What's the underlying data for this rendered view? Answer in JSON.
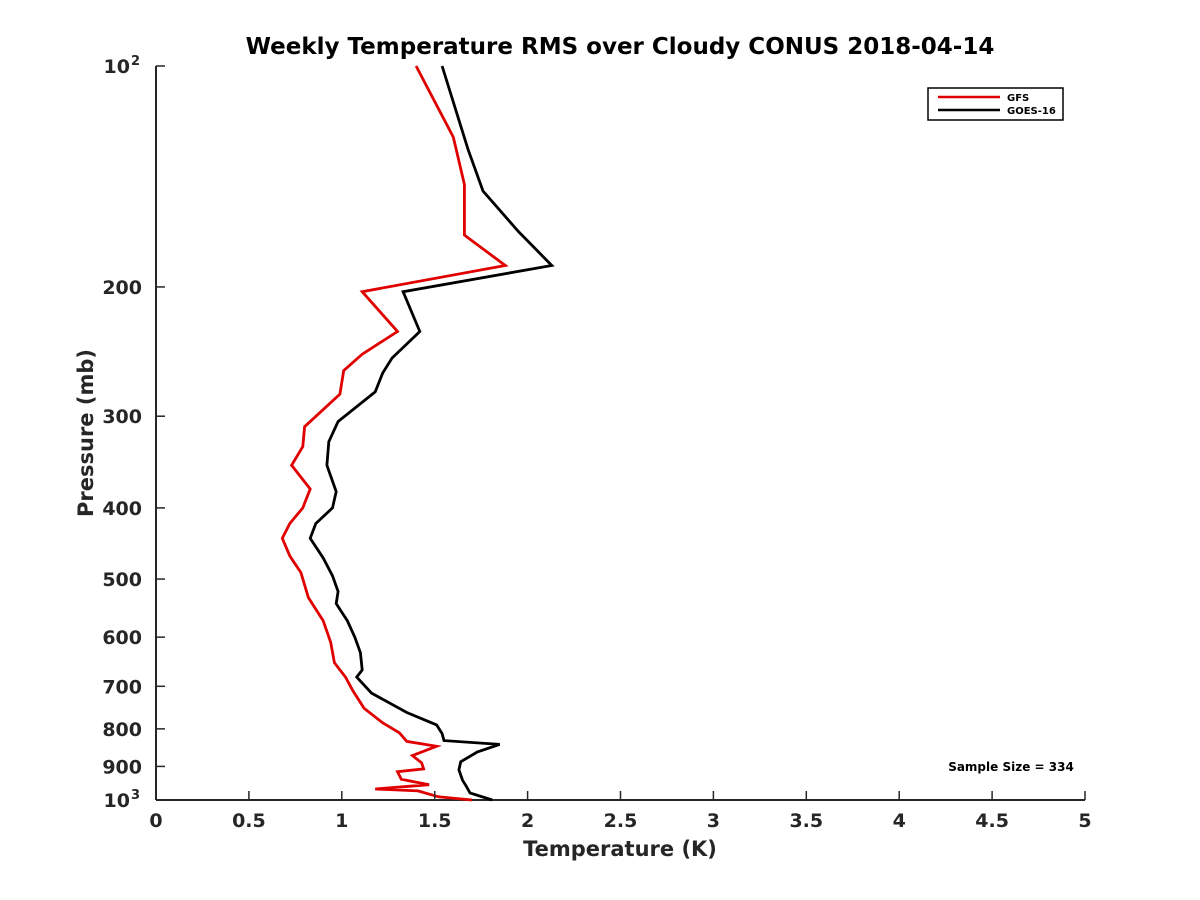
{
  "chart_data": {
    "type": "line",
    "title": "Weekly Temperature RMS over Cloudy CONUS 2018-04-14",
    "xlabel": "Temperature (K)",
    "ylabel": "Pressure (mb)",
    "xlim": [
      0,
      5
    ],
    "ylim": [
      100,
      1000
    ],
    "yscale": "log",
    "yreversed": true,
    "x_ticks": [
      {
        "value": 0,
        "label": "0"
      },
      {
        "value": 0.5,
        "label": "0.5"
      },
      {
        "value": 1,
        "label": "1"
      },
      {
        "value": 1.5,
        "label": "1.5"
      },
      {
        "value": 2,
        "label": "2"
      },
      {
        "value": 2.5,
        "label": "2.5"
      },
      {
        "value": 3,
        "label": "3"
      },
      {
        "value": 3.5,
        "label": "3.5"
      },
      {
        "value": 4,
        "label": "4"
      },
      {
        "value": 4.5,
        "label": "4.5"
      },
      {
        "value": 5,
        "label": "5"
      }
    ],
    "y_ticks": [
      {
        "value": 100,
        "base": "10",
        "exp": "2"
      },
      {
        "value": 200,
        "label": "200"
      },
      {
        "value": 300,
        "label": "300"
      },
      {
        "value": 400,
        "label": "400"
      },
      {
        "value": 500,
        "label": "500"
      },
      {
        "value": 600,
        "label": "600"
      },
      {
        "value": 700,
        "label": "700"
      },
      {
        "value": 800,
        "label": "800"
      },
      {
        "value": 900,
        "label": "900"
      },
      {
        "value": 1000,
        "base": "10",
        "exp": "3"
      }
    ],
    "grid": false,
    "legend_position": "top-right",
    "annotation": "Sample Size = 334",
    "series": [
      {
        "name": "GFS",
        "color": "#e00000",
        "points": [
          [
            1.4,
            100
          ],
          [
            1.6,
            125
          ],
          [
            1.66,
            145
          ],
          [
            1.66,
            170
          ],
          [
            1.88,
            187
          ],
          [
            1.11,
            203
          ],
          [
            1.3,
            230
          ],
          [
            1.11,
            247
          ],
          [
            1.01,
            260
          ],
          [
            0.99,
            280
          ],
          [
            0.8,
            310
          ],
          [
            0.79,
            330
          ],
          [
            0.73,
            350
          ],
          [
            0.83,
            377
          ],
          [
            0.79,
            400
          ],
          [
            0.72,
            420
          ],
          [
            0.68,
            440
          ],
          [
            0.72,
            465
          ],
          [
            0.78,
            490
          ],
          [
            0.82,
            530
          ],
          [
            0.9,
            570
          ],
          [
            0.94,
            610
          ],
          [
            0.96,
            650
          ],
          [
            1.02,
            680
          ],
          [
            1.06,
            710
          ],
          [
            1.12,
            750
          ],
          [
            1.22,
            785
          ],
          [
            1.31,
            810
          ],
          [
            1.35,
            832
          ],
          [
            1.51,
            845
          ],
          [
            1.38,
            870
          ],
          [
            1.43,
            890
          ],
          [
            1.44,
            907
          ],
          [
            1.3,
            915
          ],
          [
            1.32,
            937
          ],
          [
            1.47,
            953
          ],
          [
            1.18,
            966
          ],
          [
            1.41,
            972
          ],
          [
            1.52,
            990
          ],
          [
            1.7,
            1000
          ]
        ]
      },
      {
        "name": "GOES-16",
        "color": "#000000",
        "points": [
          [
            1.54,
            100
          ],
          [
            1.68,
            130
          ],
          [
            1.76,
            148
          ],
          [
            1.95,
            168
          ],
          [
            2.13,
            187
          ],
          [
            1.33,
            203
          ],
          [
            1.42,
            230
          ],
          [
            1.27,
            250
          ],
          [
            1.22,
            262
          ],
          [
            1.18,
            278
          ],
          [
            0.98,
            305
          ],
          [
            0.93,
            325
          ],
          [
            0.92,
            350
          ],
          [
            0.97,
            380
          ],
          [
            0.95,
            400
          ],
          [
            0.86,
            420
          ],
          [
            0.83,
            440
          ],
          [
            0.9,
            468
          ],
          [
            0.95,
            495
          ],
          [
            0.98,
            520
          ],
          [
            0.97,
            540
          ],
          [
            1.03,
            570
          ],
          [
            1.07,
            600
          ],
          [
            1.1,
            630
          ],
          [
            1.11,
            665
          ],
          [
            1.08,
            680
          ],
          [
            1.16,
            715
          ],
          [
            1.35,
            760
          ],
          [
            1.51,
            790
          ],
          [
            1.54,
            812
          ],
          [
            1.55,
            830
          ],
          [
            1.85,
            840
          ],
          [
            1.73,
            860
          ],
          [
            1.64,
            887
          ],
          [
            1.63,
            910
          ],
          [
            1.65,
            940
          ],
          [
            1.67,
            958
          ],
          [
            1.69,
            978
          ],
          [
            1.81,
            1000
          ]
        ]
      }
    ]
  }
}
